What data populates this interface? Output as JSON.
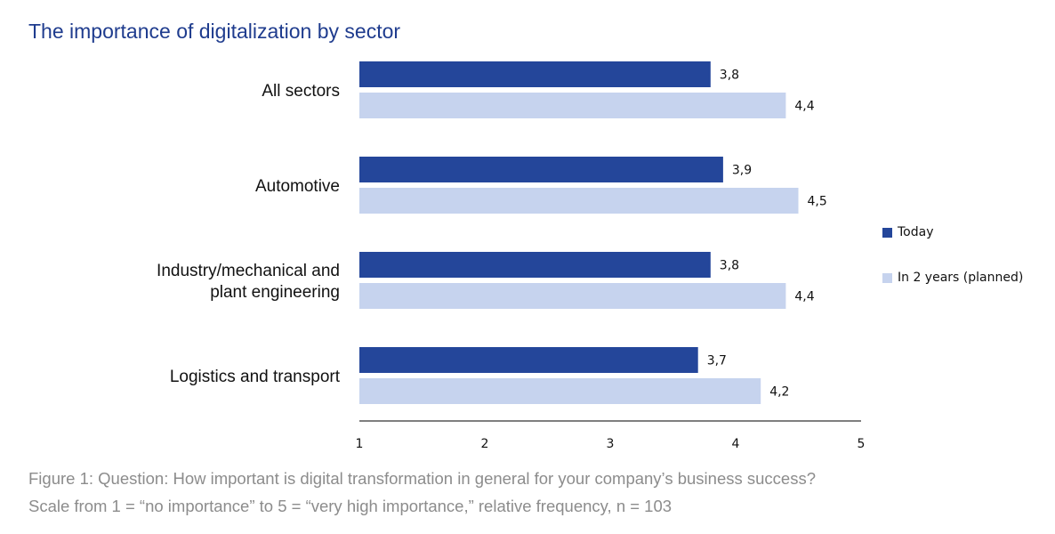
{
  "title": "The importance of digitalization by sector",
  "caption": {
    "line1": "Figure 1: Question: How important is digital transformation in general for your company’s business success?",
    "line2": "Scale from 1 = “no importance” to 5 = “very high importance,” relative frequency, n = 103"
  },
  "colors": {
    "today": "#24469a",
    "planned": "#c6d3ee",
    "title": "#1f3c8e",
    "caption": "#8c8c8c",
    "axis": "#333333"
  },
  "chart_data": {
    "type": "bar",
    "orientation": "horizontal",
    "title": "The importance of digitalization by sector",
    "categories": [
      [
        "All sectors"
      ],
      [
        "Automotive"
      ],
      [
        "Industry/mechanical and",
        "plant engineering"
      ],
      [
        "Logistics and transport"
      ]
    ],
    "series": [
      {
        "name": "Today",
        "color": "#24469a",
        "values": [
          3.8,
          3.9,
          3.8,
          3.7
        ],
        "labels": [
          "3,8",
          "3,9",
          "3,8",
          "3,7"
        ]
      },
      {
        "name": "In 2 years (planned)",
        "color": "#c6d3ee",
        "values": [
          4.4,
          4.5,
          4.4,
          4.2
        ],
        "labels": [
          "4,4",
          "4,5",
          "4,4",
          "4,2"
        ]
      }
    ],
    "xlim": [
      1,
      5
    ],
    "xticks": [
      1,
      2,
      3,
      4,
      5
    ],
    "xlabel": "",
    "ylabel": "",
    "grid": false,
    "legend_position": "right"
  }
}
